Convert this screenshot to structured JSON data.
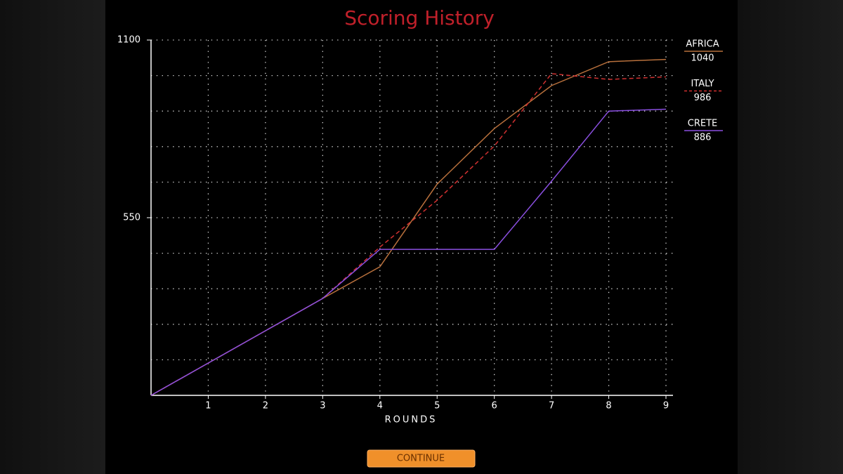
{
  "chart_data": {
    "type": "line",
    "title": "Scoring History",
    "x_label": "ROUNDS",
    "x": [
      0,
      1,
      2,
      3,
      4,
      5,
      6,
      7,
      8,
      9
    ],
    "xlim": [
      0,
      9
    ],
    "xticks": [
      1,
      2,
      3,
      4,
      5,
      6,
      7,
      8,
      9
    ],
    "ylim": [
      0,
      1100
    ],
    "yticks": [
      550,
      1100
    ],
    "ygrid": [
      110,
      220,
      330,
      440,
      550,
      660,
      770,
      880,
      990,
      1100
    ],
    "grid": true,
    "series": [
      {
        "name": "AFRICA",
        "color": "#b8703c",
        "style": "solid",
        "values": [
          0,
          100,
          200,
          300,
          398,
          654,
          826,
          959,
          1033,
          1040
        ]
      },
      {
        "name": "ITALY",
        "color": "#d03030",
        "style": "dashed",
        "values": [
          0,
          100,
          200,
          300,
          459,
          604,
          772,
          996,
          978,
          986
        ]
      },
      {
        "name": "CRETE",
        "color": "#8a4fe0",
        "style": "solid",
        "values": [
          0,
          100,
          200,
          300,
          452,
          452,
          452,
          663,
          880,
          886
        ]
      }
    ]
  },
  "button": {
    "label": "CONTINUE"
  }
}
